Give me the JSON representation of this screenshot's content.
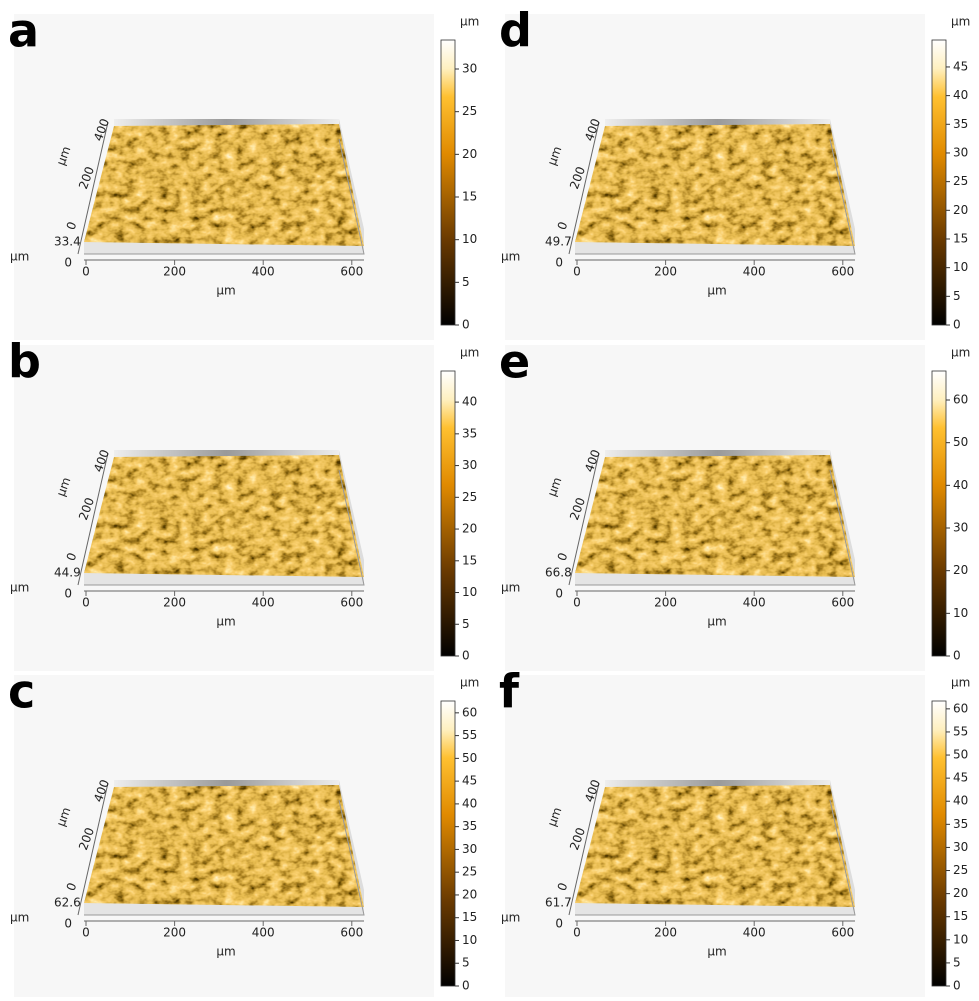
{
  "panels": [
    {
      "label": "a",
      "unit": "µm",
      "z_max": 33.4,
      "x_ticks": [
        0,
        200,
        400,
        600
      ],
      "y_ticks": [
        0,
        200,
        400
      ],
      "colorbar_ticks": [
        0,
        5,
        10,
        15,
        20,
        25,
        30
      ]
    },
    {
      "label": "b",
      "unit": "µm",
      "z_max": 44.9,
      "x_ticks": [
        0,
        200,
        400,
        600
      ],
      "y_ticks": [
        0,
        200,
        400
      ],
      "colorbar_ticks": [
        0,
        5,
        10,
        15,
        20,
        25,
        30,
        35,
        40
      ]
    },
    {
      "label": "c",
      "unit": "µm",
      "z_max": 62.6,
      "x_ticks": [
        0,
        200,
        400,
        600
      ],
      "y_ticks": [
        0,
        200,
        400
      ],
      "colorbar_ticks": [
        0,
        5,
        10,
        15,
        20,
        25,
        30,
        35,
        40,
        45,
        50,
        55,
        60
      ]
    },
    {
      "label": "d",
      "unit": "µm",
      "z_max": 49.7,
      "x_ticks": [
        0,
        200,
        400,
        600
      ],
      "y_ticks": [
        0,
        200,
        400
      ],
      "colorbar_ticks": [
        0,
        5,
        10,
        15,
        20,
        25,
        30,
        35,
        40,
        45
      ]
    },
    {
      "label": "e",
      "unit": "µm",
      "z_max": 66.8,
      "x_ticks": [
        0,
        200,
        400,
        600
      ],
      "y_ticks": [
        0,
        200,
        400
      ],
      "colorbar_ticks": [
        0,
        10,
        20,
        30,
        40,
        50,
        60
      ]
    },
    {
      "label": "f",
      "unit": "µm",
      "z_max": 61.7,
      "x_ticks": [
        0,
        200,
        400,
        600
      ],
      "y_ticks": [
        0,
        200,
        400
      ],
      "colorbar_ticks": [
        0,
        5,
        10,
        15,
        20,
        25,
        30,
        35,
        40,
        45,
        50,
        55,
        60
      ]
    }
  ]
}
